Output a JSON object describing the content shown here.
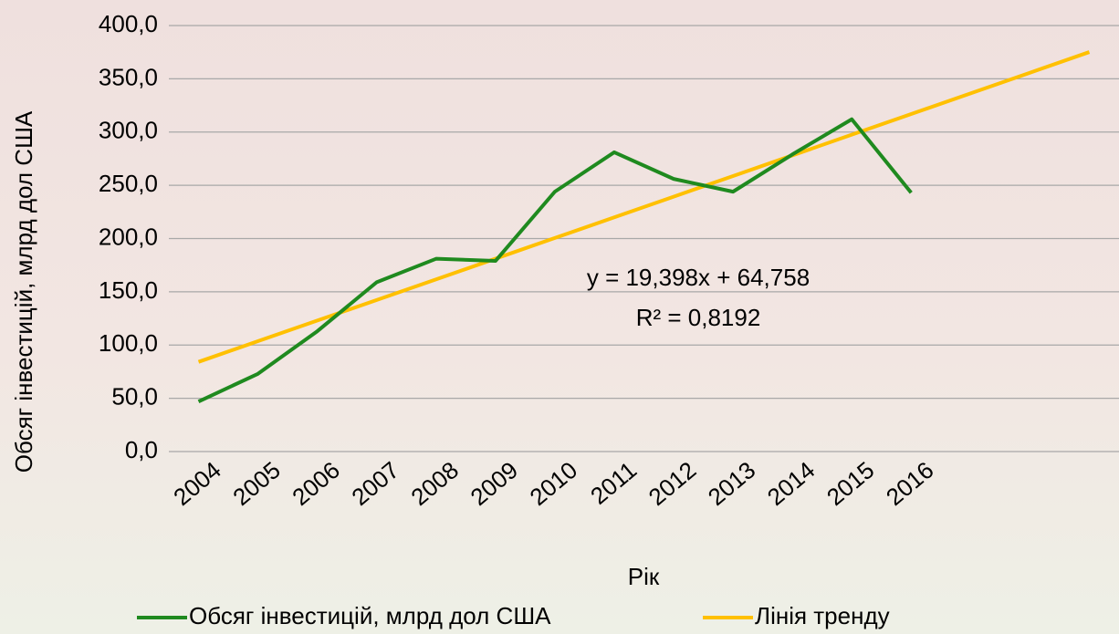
{
  "chart_data": {
    "type": "line",
    "x_label": "Рік",
    "y_label": "Обсяг інвестицій, млрд дол США",
    "categories": [
      "2004",
      "2005",
      "2006",
      "2007",
      "2008",
      "2009",
      "2010",
      "2011",
      "2012",
      "2013",
      "2014",
      "2015",
      "2016",
      null,
      null,
      null
    ],
    "series": [
      {
        "name": "Обсяг інвестицій, млрд дол США",
        "color": "#1f8a1f",
        "values": [
          47,
          73,
          113,
          159,
          181,
          179,
          244,
          281,
          256,
          244,
          279,
          312,
          243,
          null,
          null,
          null
        ]
      },
      {
        "name": "Лінія тренду",
        "color": "#ffc000",
        "values": [
          84.2,
          103.6,
          123.0,
          142.3,
          161.7,
          181.1,
          200.5,
          219.9,
          239.3,
          258.7,
          278.1,
          297.5,
          316.9,
          336.3,
          355.7,
          375.1
        ]
      }
    ],
    "annotations": [
      "y = 19,398x + 64,758",
      "R² = 0,8192"
    ],
    "ylim": [
      0,
      400
    ],
    "yticks": [
      {
        "value": 0,
        "label": "0,0"
      },
      {
        "value": 50,
        "label": "50,0"
      },
      {
        "value": 100,
        "label": "100,0"
      },
      {
        "value": 150,
        "label": "150,0"
      },
      {
        "value": 200,
        "label": "200,0"
      },
      {
        "value": 250,
        "label": "250,0"
      },
      {
        "value": 300,
        "label": "300,0"
      },
      {
        "value": 350,
        "label": "350,0"
      },
      {
        "value": 400,
        "label": "400,0"
      }
    ],
    "grid": true,
    "legend": "bottom"
  }
}
